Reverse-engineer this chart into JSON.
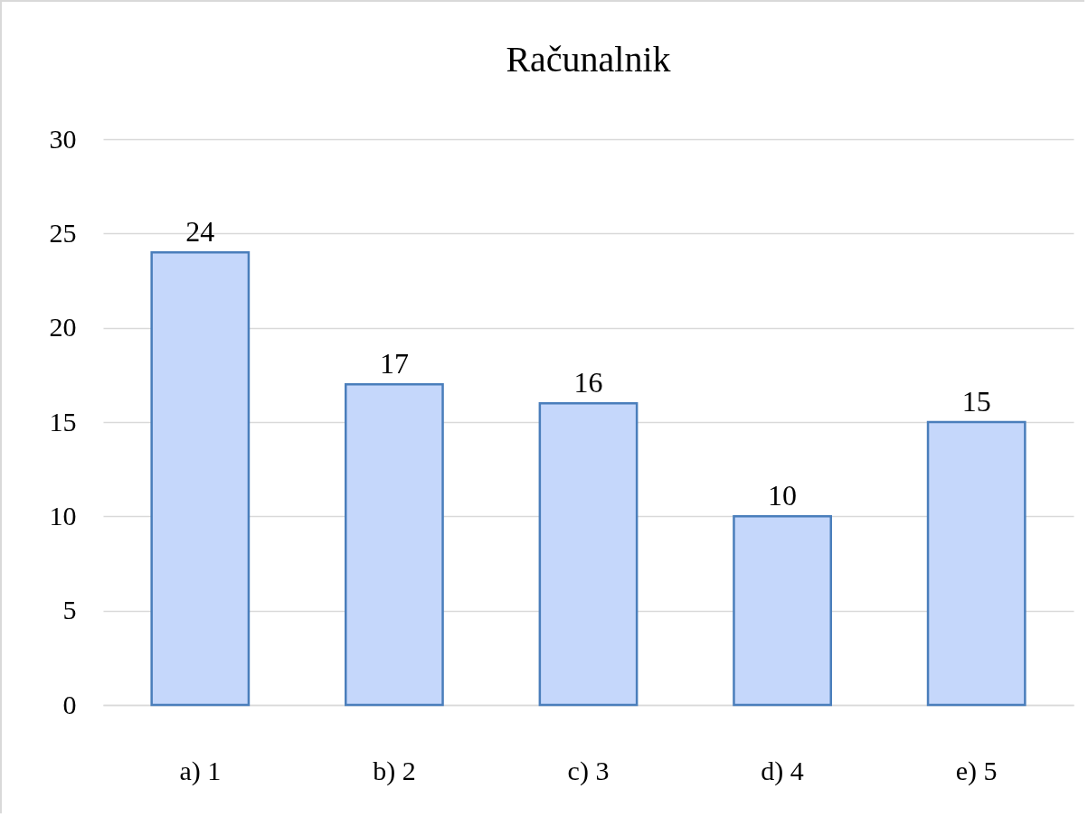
{
  "chart_data": {
    "type": "bar",
    "title": "Računalnik",
    "categories": [
      "a)  1",
      "b)  2",
      "c)  3",
      "d)  4",
      "e)  5"
    ],
    "values": [
      24,
      17,
      16,
      10,
      15
    ],
    "color": "#c5d7fb",
    "ylim": [
      0,
      30
    ],
    "yticks": [
      0,
      5,
      10,
      15,
      20,
      25,
      30
    ],
    "grid": "y",
    "data_labels": true
  }
}
